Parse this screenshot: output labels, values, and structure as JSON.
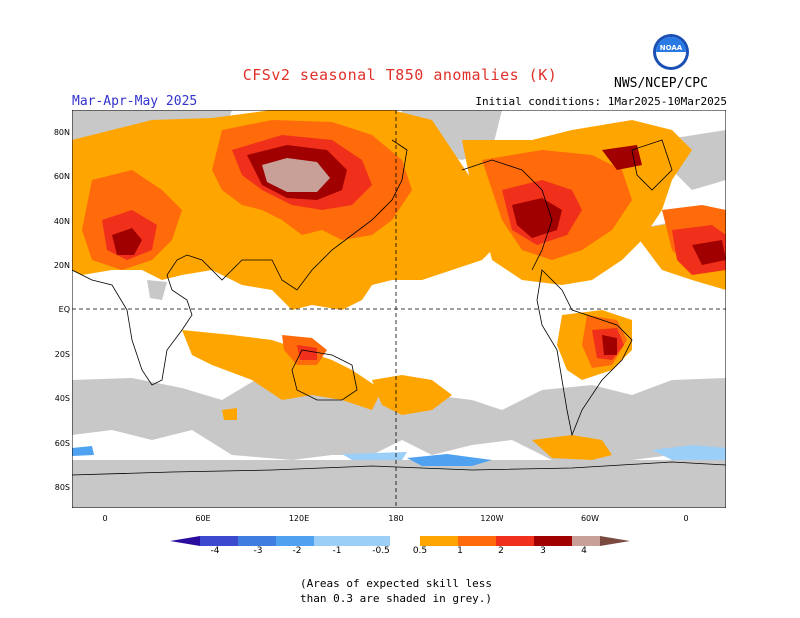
{
  "header": {
    "title": "CFSv2 seasonal T850 anomalies (K)",
    "season": "Mar-Apr-May 2025",
    "initial_conditions": "Initial conditions: 1Mar2025-10Mar2025",
    "agency": "NWS/NCEP/CPC",
    "logo_text": "NOAA"
  },
  "map": {
    "lat_labels": [
      "80N",
      "60N",
      "40N",
      "20N",
      "EQ",
      "20S",
      "40S",
      "60S",
      "80S"
    ],
    "lon_labels": [
      "0",
      "60E",
      "120E",
      "180",
      "120W",
      "60W",
      "0"
    ]
  },
  "legend": {
    "ticks": [
      "-4",
      "-3",
      "-2",
      "-1",
      "-0.5",
      "0.5",
      "1",
      "2",
      "3",
      "4"
    ],
    "colors": [
      "#2a0c9e",
      "#3c4ad0",
      "#3f7ee0",
      "#4fa2f0",
      "#9ccff8",
      "#ffffff",
      "#ffa500",
      "#ff6a0a",
      "#f0301a",
      "#a00000",
      "#c8a098",
      "#7a4a40"
    ]
  },
  "colors": {
    "grey_skill": "#c8c8c8",
    "anom_0_5": "#ffa500",
    "anom_1": "#ff6a0a",
    "anom_2": "#f0301a",
    "anom_3": "#a00000",
    "anom_4": "#c8a098",
    "cold_1": "#4fa2f0",
    "cold_05": "#9ccff8"
  },
  "note": {
    "line1": "(Areas of expected skill less",
    "line2": "than 0.3 are shaded in grey.)"
  }
}
